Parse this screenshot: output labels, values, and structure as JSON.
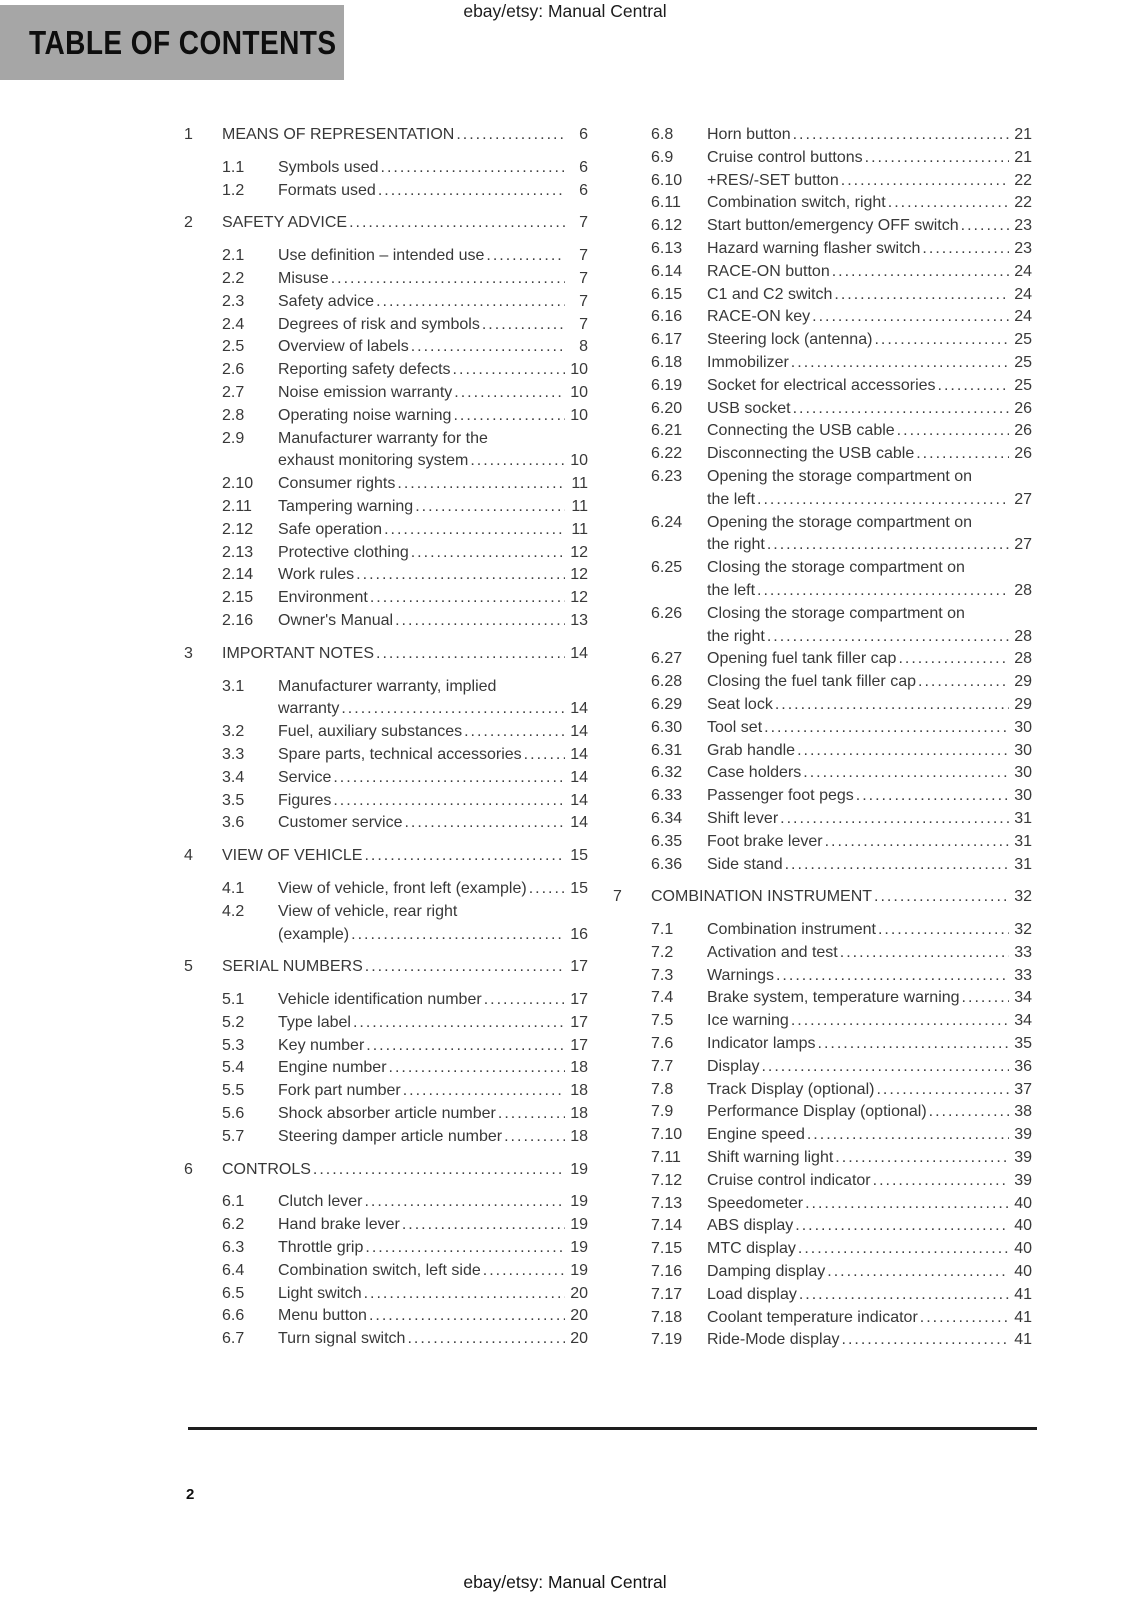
{
  "header": {
    "doc_label": "ebay/etsy: Manual Central",
    "page_title": "TABLE OF CONTENTS"
  },
  "footer": {
    "doc_label": "ebay/etsy: Manual Central",
    "page_number": "2"
  },
  "colors": {
    "title_bar_bg": "#a6a6a6",
    "text": "#383838",
    "rule": "#1e1e1e"
  },
  "toc": {
    "columns": [
      {
        "entries": [
          {
            "chapter": true,
            "num": "1",
            "lines": [
              "MEANS OF REPRESENTATION"
            ],
            "page": "6"
          },
          {
            "chapter": false,
            "num": "1.1",
            "lines": [
              "Symbols used"
            ],
            "page": "6"
          },
          {
            "chapter": false,
            "num": "1.2",
            "lines": [
              "Formats used"
            ],
            "page": "6"
          },
          {
            "chapter": true,
            "num": "2",
            "lines": [
              "SAFETY ADVICE"
            ],
            "page": "7"
          },
          {
            "chapter": false,
            "num": "2.1",
            "lines": [
              "Use definition – intended use"
            ],
            "page": "7"
          },
          {
            "chapter": false,
            "num": "2.2",
            "lines": [
              "Misuse"
            ],
            "page": "7"
          },
          {
            "chapter": false,
            "num": "2.3",
            "lines": [
              "Safety advice"
            ],
            "page": "7"
          },
          {
            "chapter": false,
            "num": "2.4",
            "lines": [
              "Degrees of risk and symbols"
            ],
            "page": "7"
          },
          {
            "chapter": false,
            "num": "2.5",
            "lines": [
              "Overview of labels"
            ],
            "page": "8"
          },
          {
            "chapter": false,
            "num": "2.6",
            "lines": [
              "Reporting safety defects"
            ],
            "page": "10"
          },
          {
            "chapter": false,
            "num": "2.7",
            "lines": [
              "Noise emission warranty"
            ],
            "page": "10"
          },
          {
            "chapter": false,
            "num": "2.8",
            "lines": [
              "Operating noise warning"
            ],
            "page": "10"
          },
          {
            "chapter": false,
            "num": "2.9",
            "lines": [
              "Manufacturer warranty for the",
              "exhaust monitoring system"
            ],
            "page": "10"
          },
          {
            "chapter": false,
            "num": "2.10",
            "lines": [
              "Consumer rights"
            ],
            "page": "11"
          },
          {
            "chapter": false,
            "num": "2.11",
            "lines": [
              "Tampering warning"
            ],
            "page": "11"
          },
          {
            "chapter": false,
            "num": "2.12",
            "lines": [
              "Safe operation"
            ],
            "page": "11"
          },
          {
            "chapter": false,
            "num": "2.13",
            "lines": [
              "Protective clothing"
            ],
            "page": "12"
          },
          {
            "chapter": false,
            "num": "2.14",
            "lines": [
              "Work rules"
            ],
            "page": "12"
          },
          {
            "chapter": false,
            "num": "2.15",
            "lines": [
              "Environment"
            ],
            "page": "12"
          },
          {
            "chapter": false,
            "num": "2.16",
            "lines": [
              "Owner's Manual"
            ],
            "page": "13"
          },
          {
            "chapter": true,
            "num": "3",
            "lines": [
              "IMPORTANT NOTES"
            ],
            "page": "14"
          },
          {
            "chapter": false,
            "num": "3.1",
            "lines": [
              "Manufacturer warranty, implied",
              "warranty"
            ],
            "page": "14"
          },
          {
            "chapter": false,
            "num": "3.2",
            "lines": [
              "Fuel, auxiliary substances"
            ],
            "page": "14"
          },
          {
            "chapter": false,
            "num": "3.3",
            "lines": [
              "Spare parts, technical accessories"
            ],
            "page": "14"
          },
          {
            "chapter": false,
            "num": "3.4",
            "lines": [
              "Service"
            ],
            "page": "14"
          },
          {
            "chapter": false,
            "num": "3.5",
            "lines": [
              "Figures"
            ],
            "page": "14"
          },
          {
            "chapter": false,
            "num": "3.6",
            "lines": [
              "Customer service"
            ],
            "page": "14"
          },
          {
            "chapter": true,
            "num": "4",
            "lines": [
              "VIEW OF VEHICLE"
            ],
            "page": "15"
          },
          {
            "chapter": false,
            "num": "4.1",
            "lines": [
              "View of vehicle, front left (example)"
            ],
            "page": "15"
          },
          {
            "chapter": false,
            "num": "4.2",
            "lines": [
              "View of vehicle, rear right",
              "(example)"
            ],
            "page": "16"
          },
          {
            "chapter": true,
            "num": "5",
            "lines": [
              "SERIAL NUMBERS"
            ],
            "page": "17"
          },
          {
            "chapter": false,
            "num": "5.1",
            "lines": [
              "Vehicle identification number"
            ],
            "page": "17"
          },
          {
            "chapter": false,
            "num": "5.2",
            "lines": [
              "Type label"
            ],
            "page": "17"
          },
          {
            "chapter": false,
            "num": "5.3",
            "lines": [
              "Key number"
            ],
            "page": "17"
          },
          {
            "chapter": false,
            "num": "5.4",
            "lines": [
              "Engine number"
            ],
            "page": "18"
          },
          {
            "chapter": false,
            "num": "5.5",
            "lines": [
              "Fork part number"
            ],
            "page": "18"
          },
          {
            "chapter": false,
            "num": "5.6",
            "lines": [
              "Shock absorber article number"
            ],
            "page": "18"
          },
          {
            "chapter": false,
            "num": "5.7",
            "lines": [
              "Steering damper article number"
            ],
            "page": "18"
          },
          {
            "chapter": true,
            "num": "6",
            "lines": [
              "CONTROLS"
            ],
            "page": "19"
          },
          {
            "chapter": false,
            "num": "6.1",
            "lines": [
              "Clutch lever"
            ],
            "page": "19"
          },
          {
            "chapter": false,
            "num": "6.2",
            "lines": [
              "Hand brake lever"
            ],
            "page": "19"
          },
          {
            "chapter": false,
            "num": "6.3",
            "lines": [
              "Throttle grip"
            ],
            "page": "19"
          },
          {
            "chapter": false,
            "num": "6.4",
            "lines": [
              "Combination switch, left side"
            ],
            "page": "19"
          },
          {
            "chapter": false,
            "num": "6.5",
            "lines": [
              "Light switch"
            ],
            "page": "20"
          },
          {
            "chapter": false,
            "num": "6.6",
            "lines": [
              "Menu button"
            ],
            "page": "20"
          },
          {
            "chapter": false,
            "num": "6.7",
            "lines": [
              "Turn signal switch"
            ],
            "page": "20"
          }
        ]
      },
      {
        "entries": [
          {
            "chapter": false,
            "num": "6.8",
            "lines": [
              "Horn button"
            ],
            "page": "21"
          },
          {
            "chapter": false,
            "num": "6.9",
            "lines": [
              "Cruise control buttons"
            ],
            "page": "21"
          },
          {
            "chapter": false,
            "num": "6.10",
            "lines": [
              "+RES/-SET button"
            ],
            "page": "22"
          },
          {
            "chapter": false,
            "num": "6.11",
            "lines": [
              "Combination switch, right"
            ],
            "page": "22"
          },
          {
            "chapter": false,
            "num": "6.12",
            "lines": [
              "Start button/emergency OFF switch"
            ],
            "page": "23"
          },
          {
            "chapter": false,
            "num": "6.13",
            "lines": [
              "Hazard warning flasher switch"
            ],
            "page": "23"
          },
          {
            "chapter": false,
            "num": "6.14",
            "lines": [
              "RACE-ON button"
            ],
            "page": "24"
          },
          {
            "chapter": false,
            "num": "6.15",
            "lines": [
              "C1 and C2 switch"
            ],
            "page": "24"
          },
          {
            "chapter": false,
            "num": "6.16",
            "lines": [
              "RACE-ON key"
            ],
            "page": "24"
          },
          {
            "chapter": false,
            "num": "6.17",
            "lines": [
              "Steering lock (antenna)"
            ],
            "page": "25"
          },
          {
            "chapter": false,
            "num": "6.18",
            "lines": [
              "Immobilizer"
            ],
            "page": "25"
          },
          {
            "chapter": false,
            "num": "6.19",
            "lines": [
              "Socket for electrical accessories"
            ],
            "page": "25"
          },
          {
            "chapter": false,
            "num": "6.20",
            "lines": [
              "USB socket"
            ],
            "page": "26"
          },
          {
            "chapter": false,
            "num": "6.21",
            "lines": [
              "Connecting the USB cable"
            ],
            "page": "26"
          },
          {
            "chapter": false,
            "num": "6.22",
            "lines": [
              "Disconnecting the USB cable"
            ],
            "page": "26"
          },
          {
            "chapter": false,
            "num": "6.23",
            "lines": [
              "Opening the storage compartment on",
              "the left"
            ],
            "page": "27"
          },
          {
            "chapter": false,
            "num": "6.24",
            "lines": [
              "Opening the storage compartment on",
              "the right"
            ],
            "page": "27"
          },
          {
            "chapter": false,
            "num": "6.25",
            "lines": [
              "Closing the storage compartment on",
              "the left"
            ],
            "page": "28"
          },
          {
            "chapter": false,
            "num": "6.26",
            "lines": [
              "Closing the storage compartment on",
              "the right"
            ],
            "page": "28"
          },
          {
            "chapter": false,
            "num": "6.27",
            "lines": [
              "Opening fuel tank filler cap"
            ],
            "page": "28"
          },
          {
            "chapter": false,
            "num": "6.28",
            "lines": [
              "Closing the fuel tank filler cap"
            ],
            "page": "29"
          },
          {
            "chapter": false,
            "num": "6.29",
            "lines": [
              "Seat lock"
            ],
            "page": "29"
          },
          {
            "chapter": false,
            "num": "6.30",
            "lines": [
              "Tool set"
            ],
            "page": "30"
          },
          {
            "chapter": false,
            "num": "6.31",
            "lines": [
              "Grab handle"
            ],
            "page": "30"
          },
          {
            "chapter": false,
            "num": "6.32",
            "lines": [
              "Case holders"
            ],
            "page": "30"
          },
          {
            "chapter": false,
            "num": "6.33",
            "lines": [
              "Passenger foot pegs"
            ],
            "page": "30"
          },
          {
            "chapter": false,
            "num": "6.34",
            "lines": [
              "Shift lever"
            ],
            "page": "31"
          },
          {
            "chapter": false,
            "num": "6.35",
            "lines": [
              "Foot brake lever"
            ],
            "page": "31"
          },
          {
            "chapter": false,
            "num": "6.36",
            "lines": [
              "Side stand"
            ],
            "page": "31"
          },
          {
            "chapter": true,
            "num": "7",
            "lines": [
              "COMBINATION INSTRUMENT"
            ],
            "page": "32"
          },
          {
            "chapter": false,
            "num": "7.1",
            "lines": [
              "Combination instrument"
            ],
            "page": "32"
          },
          {
            "chapter": false,
            "num": "7.2",
            "lines": [
              "Activation and test"
            ],
            "page": "33"
          },
          {
            "chapter": false,
            "num": "7.3",
            "lines": [
              "Warnings"
            ],
            "page": "33"
          },
          {
            "chapter": false,
            "num": "7.4",
            "lines": [
              "Brake system, temperature warning"
            ],
            "page": "34"
          },
          {
            "chapter": false,
            "num": "7.5",
            "lines": [
              "Ice warning"
            ],
            "page": "34"
          },
          {
            "chapter": false,
            "num": "7.6",
            "lines": [
              "Indicator lamps"
            ],
            "page": "35"
          },
          {
            "chapter": false,
            "num": "7.7",
            "lines": [
              "Display"
            ],
            "page": "36"
          },
          {
            "chapter": false,
            "num": "7.8",
            "lines": [
              "Track Display (optional)"
            ],
            "page": "37"
          },
          {
            "chapter": false,
            "num": "7.9",
            "lines": [
              "Performance Display (optional)"
            ],
            "page": "38"
          },
          {
            "chapter": false,
            "num": "7.10",
            "lines": [
              "Engine speed"
            ],
            "page": "39"
          },
          {
            "chapter": false,
            "num": "7.11",
            "lines": [
              "Shift warning light"
            ],
            "page": "39"
          },
          {
            "chapter": false,
            "num": "7.12",
            "lines": [
              "Cruise control indicator"
            ],
            "page": "39"
          },
          {
            "chapter": false,
            "num": "7.13",
            "lines": [
              "Speedometer"
            ],
            "page": "40"
          },
          {
            "chapter": false,
            "num": "7.14",
            "lines": [
              "ABS display"
            ],
            "page": "40"
          },
          {
            "chapter": false,
            "num": "7.15",
            "lines": [
              "MTC display"
            ],
            "page": "40"
          },
          {
            "chapter": false,
            "num": "7.16",
            "lines": [
              "Damping display"
            ],
            "page": "40"
          },
          {
            "chapter": false,
            "num": "7.17",
            "lines": [
              "Load display"
            ],
            "page": "41"
          },
          {
            "chapter": false,
            "num": "7.18",
            "lines": [
              "Coolant temperature indicator"
            ],
            "page": "41"
          },
          {
            "chapter": false,
            "num": "7.19",
            "lines": [
              "Ride-Mode display"
            ],
            "page": "41"
          }
        ]
      }
    ]
  }
}
